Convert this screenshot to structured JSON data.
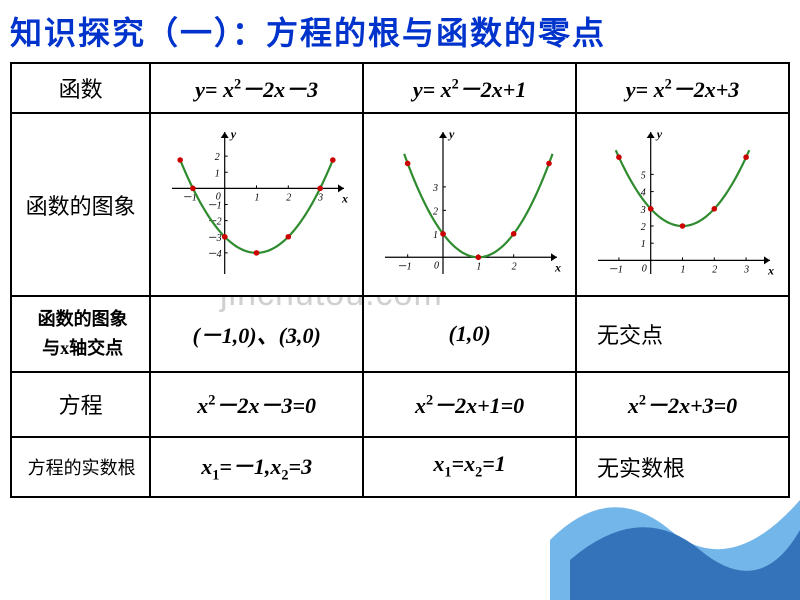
{
  "title": "知识探究（一）：方程的根与函数的零点",
  "watermark": "jinchutou.com",
  "row_labels": {
    "function": "函数",
    "graph": "函数的图象",
    "xaxis_l1": "函数的图象",
    "xaxis_l2": "与x轴交点",
    "equation": "方程",
    "roots": "方程的实数根"
  },
  "columns": [
    {
      "func_html": "y= x<sup>2</sup>－2x－3",
      "xaxis": "(－1,0)、(3,0)",
      "equation_html": "x<sup>2</sup>－2x－3=0",
      "roots_html": "x<sub>1</sub>=－1,x<sub>2</sub>=3",
      "xaxis_is_formula": true,
      "roots_is_formula": true,
      "graph": {
        "xrange": [
          -1.5,
          3.5
        ],
        "yrange": [
          -5,
          3
        ],
        "yticks": [
          1,
          2,
          -1,
          -2,
          -3,
          -4
        ],
        "xticks": [
          -1,
          1,
          2,
          3
        ],
        "curve_xmin": -1.4,
        "curve_xmax": 3.4,
        "points": [
          [
            -1,
            0
          ],
          [
            3,
            0
          ],
          [
            0,
            -3
          ],
          [
            1,
            -4
          ],
          [
            2,
            -3
          ],
          [
            -1.4,
            1.76
          ],
          [
            3.4,
            1.76
          ]
        ],
        "a": 1,
        "b": -2,
        "c": -3
      }
    },
    {
      "func_html": "y= x<sup>2</sup>－2x+1",
      "xaxis": "(1,0)",
      "equation_html": "x<sup>2</sup>－2x+1=0",
      "roots_html": "x<sub>1</sub>=x<sub>2</sub>=1",
      "xaxis_is_formula": true,
      "roots_is_formula": true,
      "graph": {
        "xrange": [
          -1.5,
          3
        ],
        "yrange": [
          -0.5,
          5
        ],
        "yticks": [
          1,
          2,
          3
        ],
        "xticks": [
          -1,
          1,
          2
        ],
        "curve_xmin": -1.1,
        "curve_xmax": 3.1,
        "points": [
          [
            1,
            0
          ],
          [
            0,
            1
          ],
          [
            2,
            1
          ],
          [
            -1,
            4
          ],
          [
            3,
            4
          ]
        ],
        "a": 1,
        "b": -2,
        "c": 1
      }
    },
    {
      "func_html": "y= x<sup>2</sup>－2x+3",
      "xaxis": "无交点",
      "equation_html": "x<sup>2</sup>－2x+3=0",
      "roots_html": "无实数根",
      "xaxis_is_formula": false,
      "roots_is_formula": false,
      "graph": {
        "xrange": [
          -1.5,
          3.5
        ],
        "yrange": [
          -0.5,
          7
        ],
        "yticks": [
          1,
          2,
          3,
          4,
          5
        ],
        "xticks": [
          -1,
          1,
          2,
          3
        ],
        "curve_xmin": -1.1,
        "curve_xmax": 3.1,
        "points": [
          [
            1,
            2
          ],
          [
            0,
            3
          ],
          [
            2,
            3
          ],
          [
            -1,
            6
          ],
          [
            3,
            6
          ]
        ],
        "a": 1,
        "b": -2,
        "c": 3
      }
    }
  ],
  "colors": {
    "title": "#0033cc",
    "curve": "#2e8b2e",
    "dot": "#cc0000",
    "wave1": "#5aa9e6",
    "wave2": "#2d6bb5"
  }
}
